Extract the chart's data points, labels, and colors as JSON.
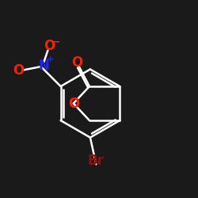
{
  "background_color": "#1a1a1a",
  "bond_color": "#ffffff",
  "bond_width": 1.8,
  "atom_colors": {
    "O": "#ff2200",
    "N": "#2222ff",
    "Br": "#8b1010",
    "C": "#ffffff"
  },
  "font_size_atoms": 12,
  "font_size_charge": 8
}
